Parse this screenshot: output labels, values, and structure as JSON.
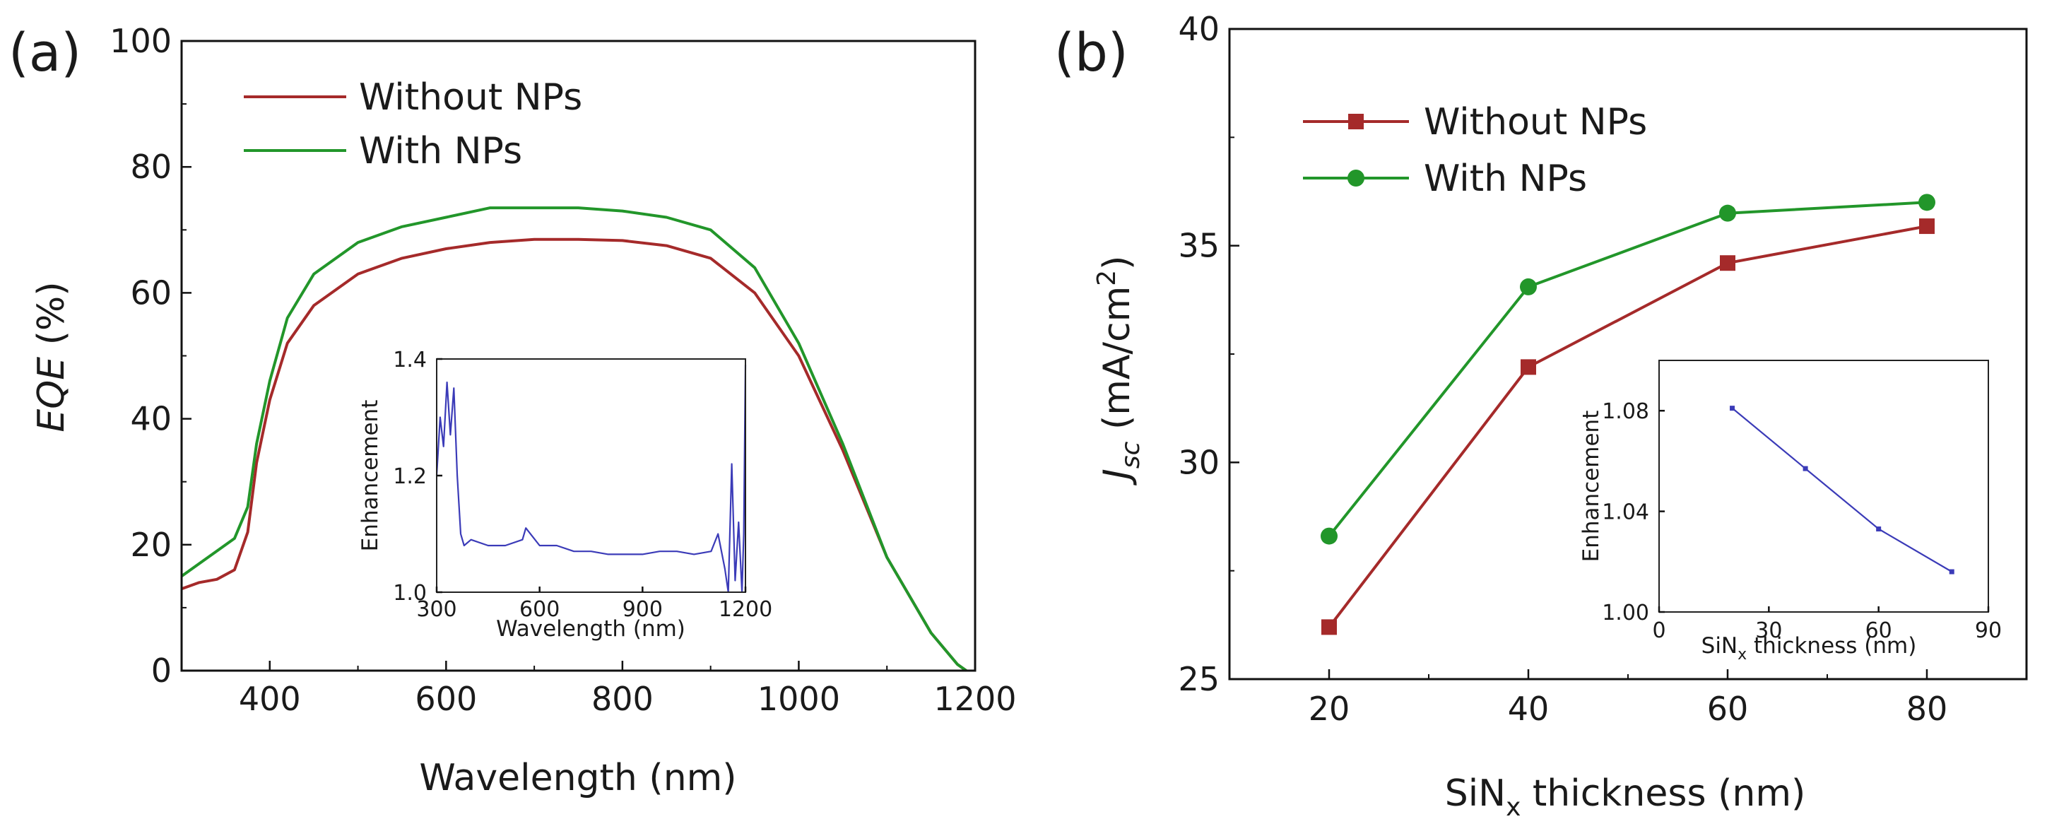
{
  "colors": {
    "without_nps": "#a52a2a",
    "with_nps": "#22962a",
    "inset_line": "#3b3bb8",
    "axis": "#111111"
  },
  "chart_data": [
    {
      "panel": "(a)",
      "type": "line",
      "title": "",
      "xlabel": "Wavelength (nm)",
      "ylabel_italic": "EQE",
      "ylabel_rest": " (%)",
      "xlim": [
        300,
        1200
      ],
      "ylim": [
        0,
        100
      ],
      "xticks": [
        400,
        600,
        800,
        1000,
        1200
      ],
      "yticks": [
        0,
        20,
        40,
        60,
        80,
        100
      ],
      "legend_position": "top-left",
      "series": [
        {
          "name": "Without NPs",
          "color_key": "without_nps",
          "x": [
            300,
            320,
            340,
            360,
            375,
            385,
            400,
            420,
            450,
            500,
            550,
            600,
            650,
            700,
            750,
            800,
            850,
            900,
            950,
            1000,
            1050,
            1100,
            1150,
            1180,
            1190
          ],
          "y": [
            13,
            14,
            14.5,
            16,
            22,
            33,
            43,
            52,
            58,
            63,
            65.5,
            67,
            68,
            68.5,
            68.5,
            68.3,
            67.5,
            65.5,
            60,
            50,
            35,
            18,
            6,
            1,
            0
          ]
        },
        {
          "name": "With NPs",
          "color_key": "with_nps",
          "x": [
            300,
            320,
            340,
            360,
            375,
            385,
            400,
            420,
            450,
            500,
            550,
            600,
            650,
            700,
            750,
            800,
            850,
            900,
            950,
            1000,
            1050,
            1100,
            1150,
            1180,
            1190
          ],
          "y": [
            15,
            17,
            19,
            21,
            26,
            36,
            46,
            56,
            63,
            68,
            70.5,
            72,
            73.5,
            73.5,
            73.5,
            73,
            72,
            70,
            64,
            52,
            36,
            18,
            6,
            1,
            0
          ]
        }
      ],
      "inset": {
        "type": "line",
        "xlabel": "Wavelength (nm)",
        "ylabel": "Enhancement",
        "xlim": [
          300,
          1200
        ],
        "ylim": [
          1.0,
          1.4
        ],
        "xticks": [
          300,
          600,
          900,
          1200
        ],
        "yticks": [
          1.0,
          1.2,
          1.4
        ],
        "series": [
          {
            "name": "Enhancement",
            "color_key": "inset_line",
            "x": [
              300,
              310,
              320,
              330,
              340,
              350,
              360,
              370,
              380,
              400,
              450,
              500,
              550,
              560,
              600,
              650,
              700,
              750,
              800,
              850,
              900,
              950,
              1000,
              1050,
              1100,
              1120,
              1140,
              1150,
              1160,
              1170,
              1180,
              1190,
              1195,
              1200
            ],
            "y": [
              1.2,
              1.3,
              1.25,
              1.36,
              1.27,
              1.35,
              1.2,
              1.1,
              1.08,
              1.09,
              1.08,
              1.08,
              1.09,
              1.11,
              1.08,
              1.08,
              1.07,
              1.07,
              1.065,
              1.065,
              1.065,
              1.07,
              1.07,
              1.065,
              1.07,
              1.1,
              1.04,
              1.0,
              1.22,
              1.02,
              1.12,
              1.0,
              1.1,
              1.39
            ]
          }
        ]
      }
    },
    {
      "panel": "(b)",
      "type": "line",
      "title": "",
      "xlabel_main": "SiN",
      "xlabel_sub": "x",
      "xlabel_rest": " thickness (nm)",
      "ylabel_main": "J",
      "ylabel_sub": "sc",
      "ylabel_rest": " (mA/cm",
      "ylabel_sup": "2",
      "ylabel_close": ")",
      "xlim": [
        10,
        90
      ],
      "ylim": [
        25,
        40
      ],
      "xticks": [
        20,
        40,
        60,
        80
      ],
      "yticks": [
        25,
        30,
        35,
        40
      ],
      "legend_position": "top-left",
      "series": [
        {
          "name": "Without NPs",
          "marker": "square",
          "color_key": "without_nps",
          "x": [
            20,
            40,
            60,
            80
          ],
          "y": [
            26.2,
            32.2,
            34.6,
            35.45
          ]
        },
        {
          "name": "With NPs",
          "marker": "circle",
          "color_key": "with_nps",
          "x": [
            20,
            40,
            60,
            80
          ],
          "y": [
            28.3,
            34.05,
            35.75,
            36.0
          ]
        }
      ],
      "inset": {
        "type": "line",
        "xlabel_main": "SiN",
        "xlabel_sub": "x",
        "xlabel_rest": " thickness (nm)",
        "ylabel": "Enhancement",
        "xlim": [
          0,
          90
        ],
        "ylim": [
          1.0,
          1.1
        ],
        "xticks": [
          0,
          30,
          60,
          90
        ],
        "yticks": [
          "1.00",
          "1.04",
          "1.08"
        ],
        "series": [
          {
            "name": "Enhancement",
            "color_key": "inset_line",
            "x": [
              20,
              40,
              60,
              80
            ],
            "y": [
              1.081,
              1.057,
              1.033,
              1.016
            ]
          }
        ]
      }
    }
  ]
}
